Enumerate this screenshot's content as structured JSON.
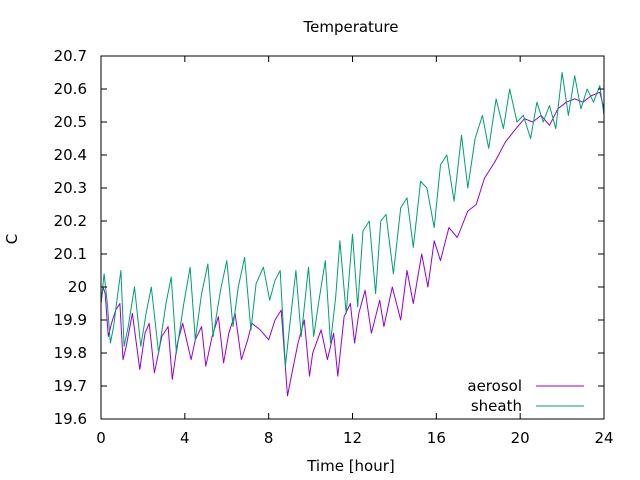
{
  "chart_data": {
    "type": "line",
    "title": "Temperature",
    "xlabel": "Time [hour]",
    "ylabel": "C",
    "xlim": [
      0,
      24
    ],
    "ylim": [
      19.6,
      20.7
    ],
    "x_ticks": [
      0,
      4,
      8,
      12,
      16,
      20,
      24
    ],
    "y_ticks": [
      19.6,
      19.7,
      19.8,
      19.9,
      20.0,
      20.1,
      20.2,
      20.3,
      20.4,
      20.5,
      20.6,
      20.7
    ],
    "y_tick_labels": [
      "19.6",
      "19.7",
      "19.8",
      "19.9",
      "20",
      "20.1",
      "20.2",
      "20.3",
      "20.4",
      "20.5",
      "20.6",
      "20.7"
    ],
    "grid": false,
    "legend_position": "bottom-right",
    "series": [
      {
        "name": "aerosol",
        "color": "#9400d3",
        "x": [
          0,
          0.1,
          0.2,
          0.35,
          0.5,
          0.7,
          0.9,
          1.05,
          1.2,
          1.5,
          1.85,
          2.1,
          2.3,
          2.55,
          2.9,
          3.2,
          3.4,
          3.65,
          3.9,
          4.3,
          4.5,
          4.8,
          5.0,
          5.3,
          5.6,
          5.85,
          6.1,
          6.4,
          6.7,
          7.0,
          7.2,
          7.6,
          8.0,
          8.3,
          8.6,
          8.9,
          9.05,
          9.4,
          9.7,
          9.95,
          10.1,
          10.5,
          10.8,
          11.1,
          11.3,
          11.6,
          11.9,
          12.1,
          12.3,
          12.6,
          12.9,
          13.3,
          13.5,
          13.9,
          14.3,
          14.6,
          14.9,
          15.3,
          15.6,
          15.9,
          16.2,
          16.6,
          17.0,
          17.5,
          17.9,
          18.3,
          18.8,
          19.3,
          19.8,
          20.2,
          20.6,
          21.0,
          21.4,
          21.8,
          22.2,
          22.6,
          23.0,
          23.4,
          23.8,
          24.0
        ],
        "values": [
          19.95,
          20.0,
          19.98,
          19.85,
          19.89,
          19.93,
          19.95,
          19.78,
          19.82,
          19.92,
          19.75,
          19.86,
          19.89,
          19.74,
          19.85,
          19.88,
          19.72,
          19.83,
          19.89,
          19.78,
          19.84,
          19.88,
          19.76,
          19.85,
          19.91,
          19.77,
          19.86,
          19.92,
          19.78,
          19.84,
          19.89,
          19.87,
          19.84,
          19.9,
          19.93,
          19.67,
          19.72,
          19.83,
          19.9,
          19.73,
          19.8,
          19.87,
          19.78,
          19.86,
          19.73,
          19.91,
          19.95,
          19.83,
          19.92,
          19.99,
          19.86,
          19.96,
          19.88,
          20.0,
          19.9,
          20.05,
          19.95,
          20.1,
          20.0,
          20.14,
          20.08,
          20.18,
          20.15,
          20.23,
          20.25,
          20.33,
          20.38,
          20.44,
          20.48,
          20.51,
          20.5,
          20.52,
          20.49,
          20.54,
          20.56,
          20.57,
          20.56,
          20.58,
          20.59,
          20.54
        ]
      },
      {
        "name": "sheath",
        "color": "#009e73",
        "x": [
          0,
          0.15,
          0.3,
          0.45,
          0.6,
          0.8,
          0.95,
          1.1,
          1.3,
          1.6,
          1.9,
          2.15,
          2.4,
          2.75,
          3.1,
          3.35,
          3.6,
          3.95,
          4.25,
          4.5,
          4.8,
          5.1,
          5.35,
          5.7,
          6.0,
          6.3,
          6.55,
          6.85,
          7.15,
          7.4,
          7.75,
          8.05,
          8.3,
          8.55,
          8.8,
          9.0,
          9.3,
          9.55,
          9.9,
          10.15,
          10.4,
          10.7,
          10.95,
          11.2,
          11.4,
          11.7,
          12.0,
          12.25,
          12.5,
          12.8,
          13.1,
          13.35,
          13.6,
          13.95,
          14.3,
          14.6,
          14.9,
          15.25,
          15.55,
          15.9,
          16.2,
          16.5,
          16.85,
          17.2,
          17.5,
          17.85,
          18.2,
          18.5,
          18.85,
          19.2,
          19.5,
          19.85,
          20.15,
          20.5,
          20.8,
          21.1,
          21.4,
          21.7,
          22.0,
          22.3,
          22.6,
          22.9,
          23.2,
          23.5,
          23.8,
          24.0
        ],
        "values": [
          19.95,
          20.04,
          19.95,
          19.83,
          19.88,
          19.98,
          20.05,
          19.82,
          19.88,
          20.0,
          19.82,
          19.92,
          20.0,
          19.8,
          19.95,
          20.03,
          19.8,
          19.95,
          20.06,
          19.84,
          19.98,
          20.07,
          19.85,
          19.99,
          20.08,
          19.88,
          20.0,
          20.09,
          19.87,
          20.01,
          20.06,
          19.96,
          20.02,
          20.05,
          19.76,
          19.88,
          20.05,
          19.85,
          20.06,
          19.85,
          19.96,
          20.08,
          19.83,
          19.97,
          20.14,
          19.92,
          20.16,
          19.94,
          20.17,
          20.2,
          19.98,
          20.2,
          20.22,
          20.04,
          20.24,
          20.27,
          20.12,
          20.32,
          20.3,
          20.18,
          20.37,
          20.4,
          20.26,
          20.46,
          20.3,
          20.45,
          20.52,
          20.42,
          20.57,
          20.48,
          20.6,
          20.5,
          20.52,
          20.45,
          20.56,
          20.5,
          20.55,
          20.48,
          20.65,
          20.52,
          20.64,
          20.54,
          20.6,
          20.56,
          20.61,
          20.52
        ]
      }
    ]
  }
}
